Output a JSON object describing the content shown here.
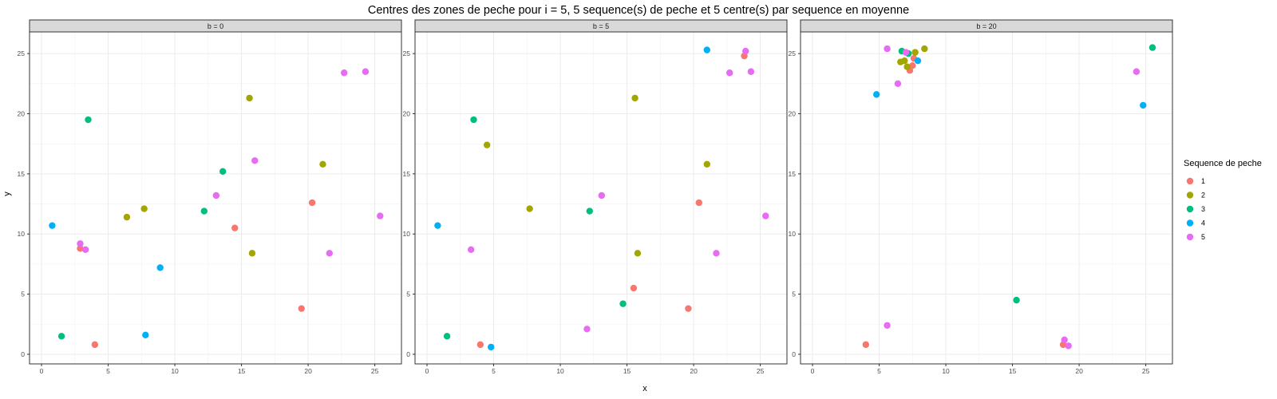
{
  "chart_data": {
    "type": "scatter",
    "title": "Centres des zones de peche pour i = 5, 5 sequence(s) de peche et 5 centre(s) par sequence en moyenne",
    "xlabel": "x",
    "ylabel": "y",
    "xlim": [
      -0.9,
      27
    ],
    "ylim": [
      -0.8,
      26.8
    ],
    "x_ticks": [
      0,
      5,
      10,
      15,
      20,
      25
    ],
    "y_ticks": [
      0,
      5,
      10,
      15,
      20,
      25
    ],
    "grid": true,
    "legend": {
      "title": "Sequence de peche",
      "position": "right",
      "entries": [
        {
          "label": "1",
          "color": "#F8766D"
        },
        {
          "label": "2",
          "color": "#A3A500"
        },
        {
          "label": "3",
          "color": "#00BF7D"
        },
        {
          "label": "4",
          "color": "#00B0F6"
        },
        {
          "label": "5",
          "color": "#E76BF3"
        }
      ]
    },
    "panels": [
      {
        "strip": "b = 0",
        "series": [
          {
            "name": "1",
            "points": [
              [
                2.9,
                8.8
              ],
              [
                4.0,
                0.8
              ],
              [
                14.5,
                10.5
              ],
              [
                20.3,
                12.6
              ],
              [
                19.5,
                3.8
              ]
            ]
          },
          {
            "name": "2",
            "points": [
              [
                6.4,
                11.4
              ],
              [
                7.7,
                12.1
              ],
              [
                15.6,
                21.3
              ],
              [
                15.8,
                8.4
              ],
              [
                21.1,
                15.8
              ]
            ]
          },
          {
            "name": "3",
            "points": [
              [
                3.5,
                19.5
              ],
              [
                1.5,
                1.5
              ],
              [
                12.2,
                11.9
              ],
              [
                13.6,
                15.2
              ]
            ]
          },
          {
            "name": "4",
            "points": [
              [
                0.8,
                10.7
              ],
              [
                8.9,
                7.2
              ],
              [
                7.8,
                1.6
              ]
            ]
          },
          {
            "name": "5",
            "points": [
              [
                2.9,
                9.2
              ],
              [
                3.3,
                8.7
              ],
              [
                13.1,
                13.2
              ],
              [
                16.0,
                16.1
              ],
              [
                21.6,
                8.4
              ],
              [
                22.7,
                23.4
              ],
              [
                24.3,
                23.5
              ],
              [
                25.4,
                11.5
              ]
            ]
          }
        ]
      },
      {
        "strip": "b = 5",
        "series": [
          {
            "name": "1",
            "points": [
              [
                4.0,
                0.8
              ],
              [
                15.5,
                5.5
              ],
              [
                19.6,
                3.8
              ],
              [
                20.4,
                12.6
              ],
              [
                23.8,
                24.8
              ]
            ]
          },
          {
            "name": "2",
            "points": [
              [
                4.5,
                17.4
              ],
              [
                7.7,
                12.1
              ],
              [
                15.6,
                21.3
              ],
              [
                15.8,
                8.4
              ],
              [
                21.0,
                15.8
              ]
            ]
          },
          {
            "name": "3",
            "points": [
              [
                3.5,
                19.5
              ],
              [
                1.5,
                1.5
              ],
              [
                12.2,
                11.9
              ],
              [
                14.7,
                4.2
              ]
            ]
          },
          {
            "name": "4",
            "points": [
              [
                0.8,
                10.7
              ],
              [
                4.8,
                0.6
              ],
              [
                21.0,
                25.3
              ]
            ]
          },
          {
            "name": "5",
            "points": [
              [
                3.3,
                8.7
              ],
              [
                12.0,
                2.1
              ],
              [
                13.1,
                13.2
              ],
              [
                21.7,
                8.4
              ],
              [
                22.7,
                23.4
              ],
              [
                23.9,
                25.2
              ],
              [
                24.3,
                23.5
              ],
              [
                25.4,
                11.5
              ]
            ]
          }
        ]
      },
      {
        "strip": "b = 20",
        "series": [
          {
            "name": "1",
            "points": [
              [
                4.0,
                0.8
              ],
              [
                7.3,
                23.6
              ],
              [
                7.5,
                24.0
              ],
              [
                7.6,
                24.6
              ],
              [
                18.8,
                0.8
              ]
            ]
          },
          {
            "name": "2",
            "points": [
              [
                6.6,
                24.3
              ],
              [
                6.9,
                24.4
              ],
              [
                7.1,
                23.9
              ],
              [
                7.7,
                25.1
              ],
              [
                8.4,
                25.4
              ]
            ]
          },
          {
            "name": "3",
            "points": [
              [
                6.7,
                25.2
              ],
              [
                7.2,
                25.0
              ],
              [
                15.3,
                4.5
              ],
              [
                25.5,
                25.5
              ]
            ]
          },
          {
            "name": "4",
            "points": [
              [
                4.8,
                21.6
              ],
              [
                7.9,
                24.4
              ],
              [
                24.8,
                20.7
              ]
            ]
          },
          {
            "name": "5",
            "points": [
              [
                5.6,
                25.4
              ],
              [
                5.6,
                2.4
              ],
              [
                6.4,
                22.5
              ],
              [
                7.0,
                25.1
              ],
              [
                18.9,
                1.2
              ],
              [
                19.2,
                0.7
              ],
              [
                24.3,
                23.5
              ]
            ]
          }
        ]
      }
    ]
  }
}
